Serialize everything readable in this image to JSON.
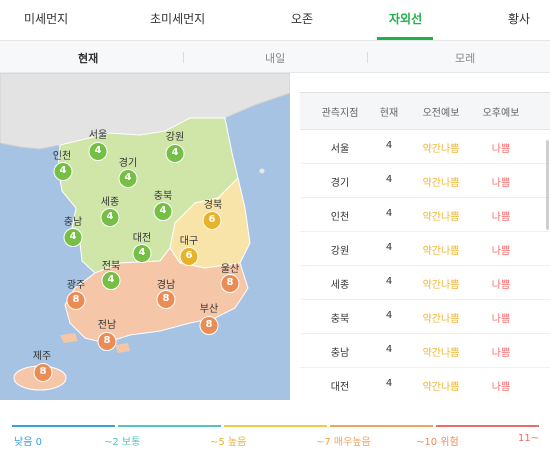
{
  "top_tabs": {
    "pm10": "미세먼지",
    "pm25": "초미세먼지",
    "ozone": "오존",
    "uv": "자외선",
    "yellow_dust": "황사"
  },
  "day_tabs": {
    "today": "현재",
    "tomorrow": "내일",
    "day_after": "모레"
  },
  "map": {
    "regions": [
      {
        "name": "서울",
        "value": "4",
        "grade": "g4"
      },
      {
        "name": "강원",
        "value": "4",
        "grade": "g4"
      },
      {
        "name": "인천",
        "value": "4",
        "grade": "g4"
      },
      {
        "name": "경기",
        "value": "4",
        "grade": "g4"
      },
      {
        "name": "세종",
        "value": "4",
        "grade": "g4"
      },
      {
        "name": "충북",
        "value": "4",
        "grade": "g4"
      },
      {
        "name": "경북",
        "value": "6",
        "grade": "g6"
      },
      {
        "name": "충남",
        "value": "4",
        "grade": "g4"
      },
      {
        "name": "대전",
        "value": "4",
        "grade": "g4"
      },
      {
        "name": "대구",
        "value": "6",
        "grade": "g6"
      },
      {
        "name": "전북",
        "value": "4",
        "grade": "g4"
      },
      {
        "name": "울산",
        "value": "8",
        "grade": "g8"
      },
      {
        "name": "광주",
        "value": "8",
        "grade": "g8"
      },
      {
        "name": "경남",
        "value": "8",
        "grade": "g8"
      },
      {
        "name": "부산",
        "value": "8",
        "grade": "g8"
      },
      {
        "name": "전남",
        "value": "8",
        "grade": "g8"
      },
      {
        "name": "제주",
        "value": "8",
        "grade": "g8"
      }
    ]
  },
  "table": {
    "headers": {
      "station": "관측지점",
      "now": "현재",
      "am": "오전예보",
      "pm": "오후예보"
    },
    "rows": [
      {
        "station": "서울",
        "now": "4",
        "am": "약간나쁨",
        "pm": "나쁨"
      },
      {
        "station": "경기",
        "now": "4",
        "am": "약간나쁨",
        "pm": "나쁨"
      },
      {
        "station": "인천",
        "now": "4",
        "am": "약간나쁨",
        "pm": "나쁨"
      },
      {
        "station": "강원",
        "now": "4",
        "am": "약간나쁨",
        "pm": "나쁨"
      },
      {
        "station": "세종",
        "now": "4",
        "am": "약간나쁨",
        "pm": "나쁨"
      },
      {
        "station": "충북",
        "now": "4",
        "am": "약간나쁨",
        "pm": "나쁨"
      },
      {
        "station": "충남",
        "now": "4",
        "am": "약간나쁨",
        "pm": "나쁨"
      },
      {
        "station": "대전",
        "now": "4",
        "am": "약간나쁨",
        "pm": "나쁨"
      }
    ]
  },
  "legend": {
    "items": [
      {
        "label": "낮음 0",
        "color": "#3a9fe0"
      },
      {
        "label": "~2 보통",
        "color": "#52c3c0"
      },
      {
        "label": "~5 높음",
        "color": "#f2c94c"
      },
      {
        "label": "~7 매우높음",
        "color": "#f4a35b"
      },
      {
        "label": "~10 위험",
        "color": "#f08a5d"
      },
      {
        "label": "11~",
        "color": "#ec6a6a"
      }
    ]
  },
  "colors": {
    "accent": "#1fb14a",
    "grade_4": "#74bf44",
    "grade_6": "#e7b32a",
    "grade_8": "#ec8c55",
    "forecast_moderate": "#f2b431",
    "forecast_bad": "#ff6c6c",
    "sea": "#a6c3e3"
  }
}
